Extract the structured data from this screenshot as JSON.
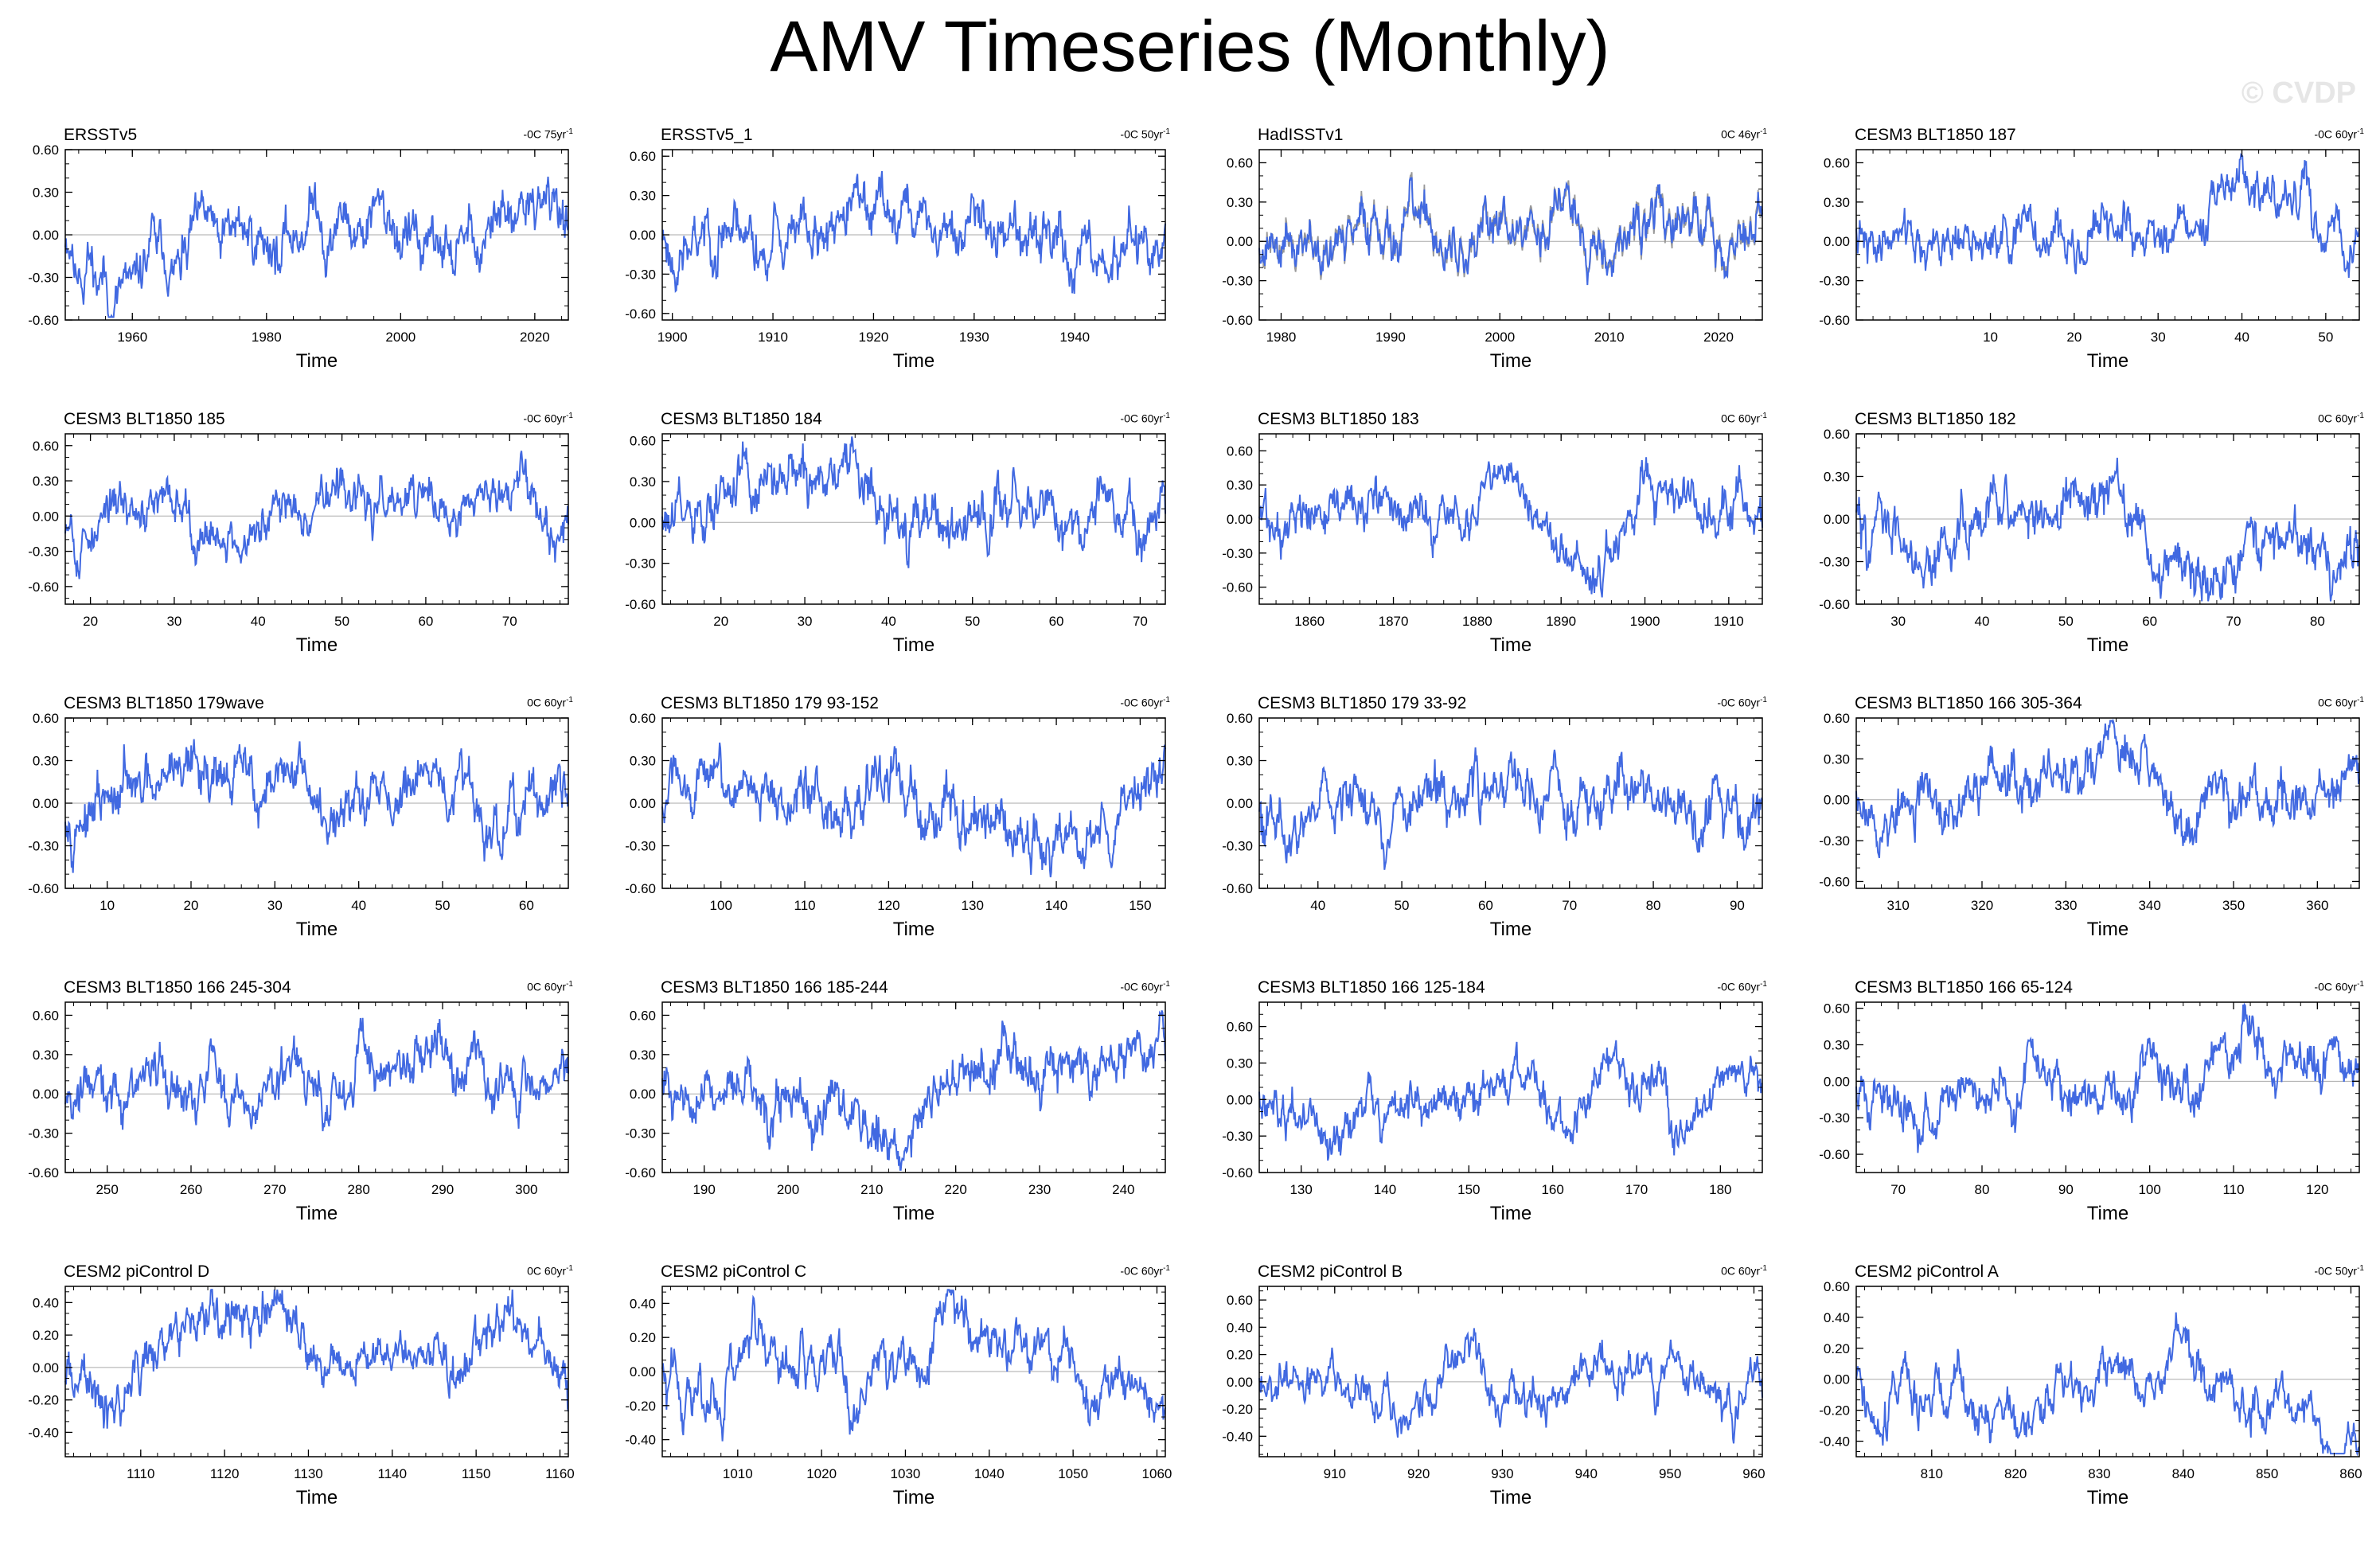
{
  "figure": {
    "title": "AMV Timeseries (Monthly)",
    "watermark": "© CVDP"
  },
  "colors": {
    "series": "#4169e1",
    "zero_line": "#aaaaaa",
    "axis": "#000000",
    "obs_secondary": "#999999"
  },
  "chart_data": [
    {
      "type": "line",
      "title": "ERSSTv5",
      "trend": "-0C 75yr",
      "xlabel": "Time",
      "ylabel": "",
      "xlim": [
        1950,
        2025
      ],
      "ylim": [
        -0.6,
        0.6
      ],
      "yticks": [
        "-0.60",
        "-0.30",
        "0.00",
        "0.30",
        "0.60"
      ],
      "xticks": [
        1960,
        1980,
        2000,
        2020
      ],
      "seed": 11,
      "noise_amp": 0.22
    },
    {
      "type": "line",
      "title": "ERSSTv5_1",
      "trend": "-0C 50yr",
      "xlabel": "Time",
      "ylabel": "",
      "xlim": [
        1899,
        1949
      ],
      "ylim": [
        -0.65,
        0.65
      ],
      "yticks": [
        "-0.60",
        "-0.30",
        "0.00",
        "0.30",
        "0.60"
      ],
      "xticks": [
        1900,
        1910,
        1920,
        1930,
        1940
      ],
      "seed": 23,
      "noise_amp": 0.24
    },
    {
      "type": "line",
      "title": "HadISSTv1",
      "trend": "0C 46yr",
      "xlabel": "Time",
      "ylabel": "",
      "xlim": [
        1978,
        2024
      ],
      "ylim": [
        -0.6,
        0.7
      ],
      "yticks": [
        "-0.60",
        "-0.30",
        "0.00",
        "0.30",
        "0.60"
      ],
      "xticks": [
        1980,
        1990,
        2000,
        2010,
        2020
      ],
      "seed": 37,
      "noise_amp": 0.22,
      "secondary": true
    },
    {
      "type": "line",
      "title": "CESM3 BLT1850 187",
      "trend": "-0C 60yr",
      "xlabel": "Time",
      "ylabel": "",
      "xlim": [
        -6,
        54
      ],
      "ylim": [
        -0.6,
        0.7
      ],
      "yticks": [
        "-0.60",
        "-0.30",
        "0.00",
        "0.30",
        "0.60"
      ],
      "xticks": [
        10,
        20,
        30,
        40,
        50
      ],
      "seed": 41,
      "noise_amp": 0.2
    },
    {
      "type": "line",
      "title": "CESM3 BLT1850 185",
      "trend": "-0C 60yr",
      "xlabel": "Time",
      "ylabel": "",
      "xlim": [
        17,
        77
      ],
      "ylim": [
        -0.75,
        0.7
      ],
      "yticks": [
        "-0.60",
        "-0.30",
        "0.00",
        "0.30",
        "0.60"
      ],
      "xticks": [
        20,
        30,
        40,
        50,
        60,
        70
      ],
      "seed": 53,
      "noise_amp": 0.22
    },
    {
      "type": "line",
      "title": "CESM3 BLT1850 184",
      "trend": "-0C 60yr",
      "xlabel": "Time",
      "ylabel": "",
      "xlim": [
        13,
        73
      ],
      "ylim": [
        -0.6,
        0.65
      ],
      "yticks": [
        "-0.60",
        "-0.30",
        "0.00",
        "0.30",
        "0.60"
      ],
      "xticks": [
        20,
        30,
        40,
        50,
        60,
        70
      ],
      "seed": 61,
      "noise_amp": 0.24
    },
    {
      "type": "line",
      "title": "CESM3 BLT1850 183",
      "trend": "0C 60yr",
      "xlabel": "Time",
      "ylabel": "",
      "xlim": [
        1854,
        1914
      ],
      "ylim": [
        -0.75,
        0.75
      ],
      "yticks": [
        "-0.60",
        "-0.30",
        "0.00",
        "0.30",
        "0.60"
      ],
      "xticks": [
        1860,
        1870,
        1880,
        1890,
        1900,
        1910
      ],
      "seed": 71,
      "noise_amp": 0.24
    },
    {
      "type": "line",
      "title": "CESM3 BLT1850 182",
      "trend": "0C 60yr",
      "xlabel": "Time",
      "ylabel": "",
      "xlim": [
        25,
        85
      ],
      "ylim": [
        -0.6,
        0.6
      ],
      "yticks": [
        "-0.60",
        "-0.30",
        "0.00",
        "0.30",
        "0.60"
      ],
      "xticks": [
        30,
        40,
        50,
        60,
        70,
        80
      ],
      "seed": 83,
      "noise_amp": 0.22
    },
    {
      "type": "line",
      "title": "CESM3 BLT1850 179wave",
      "trend": "0C 60yr",
      "xlabel": "Time",
      "ylabel": "",
      "xlim": [
        5,
        65
      ],
      "ylim": [
        -0.6,
        0.6
      ],
      "yticks": [
        "-0.60",
        "-0.30",
        "0.00",
        "0.30",
        "0.60"
      ],
      "xticks": [
        10,
        20,
        30,
        40,
        50,
        60
      ],
      "seed": 97,
      "noise_amp": 0.22
    },
    {
      "type": "line",
      "title": "CESM3 BLT1850 179 93-152",
      "trend": "-0C 60yr",
      "xlabel": "Time",
      "ylabel": "",
      "xlim": [
        93,
        153
      ],
      "ylim": [
        -0.6,
        0.6
      ],
      "yticks": [
        "-0.60",
        "-0.30",
        "0.00",
        "0.30",
        "0.60"
      ],
      "xticks": [
        100,
        110,
        120,
        130,
        140,
        150
      ],
      "seed": 103,
      "noise_amp": 0.22
    },
    {
      "type": "line",
      "title": "CESM3 BLT1850 179 33-92",
      "trend": "-0C 60yr",
      "xlabel": "Time",
      "ylabel": "",
      "xlim": [
        33,
        93
      ],
      "ylim": [
        -0.6,
        0.6
      ],
      "yticks": [
        "-0.60",
        "-0.30",
        "0.00",
        "0.30",
        "0.60"
      ],
      "xticks": [
        40,
        50,
        60,
        70,
        80,
        90
      ],
      "seed": 113,
      "noise_amp": 0.22
    },
    {
      "type": "line",
      "title": "CESM3 BLT1850 166 305-364",
      "trend": "0C 60yr",
      "xlabel": "Time",
      "ylabel": "",
      "xlim": [
        305,
        365
      ],
      "ylim": [
        -0.65,
        0.6
      ],
      "yticks": [
        "-0.60",
        "-0.30",
        "0.00",
        "0.30",
        "0.60"
      ],
      "xticks": [
        310,
        320,
        330,
        340,
        350,
        360
      ],
      "seed": 127,
      "noise_amp": 0.22
    },
    {
      "type": "line",
      "title": "CESM3 BLT1850 166 245-304",
      "trend": "0C 60yr",
      "xlabel": "Time",
      "ylabel": "",
      "xlim": [
        245,
        305
      ],
      "ylim": [
        -0.6,
        0.7
      ],
      "yticks": [
        "-0.60",
        "-0.30",
        "0.00",
        "0.30",
        "0.60"
      ],
      "xticks": [
        250,
        260,
        270,
        280,
        290,
        300
      ],
      "seed": 131,
      "noise_amp": 0.22
    },
    {
      "type": "line",
      "title": "CESM3 BLT1850 166 185-244",
      "trend": "-0C 60yr",
      "xlabel": "Time",
      "ylabel": "",
      "xlim": [
        185,
        245
      ],
      "ylim": [
        -0.6,
        0.7
      ],
      "yticks": [
        "-0.60",
        "-0.30",
        "0.00",
        "0.30",
        "0.60"
      ],
      "xticks": [
        190,
        200,
        210,
        220,
        230,
        240
      ],
      "seed": 139,
      "noise_amp": 0.24
    },
    {
      "type": "line",
      "title": "CESM3 BLT1850 166 125-184",
      "trend": "-0C 60yr",
      "xlabel": "Time",
      "ylabel": "",
      "xlim": [
        125,
        185
      ],
      "ylim": [
        -0.6,
        0.8
      ],
      "yticks": [
        "-0.60",
        "-0.30",
        "0.00",
        "0.30",
        "0.60"
      ],
      "xticks": [
        130,
        140,
        150,
        160,
        170,
        180
      ],
      "seed": 149,
      "noise_amp": 0.2
    },
    {
      "type": "line",
      "title": "CESM3 BLT1850 166 65-124",
      "trend": "-0C 60yr",
      "xlabel": "Time",
      "ylabel": "",
      "xlim": [
        65,
        125
      ],
      "ylim": [
        -0.75,
        0.65
      ],
      "yticks": [
        "-0.60",
        "-0.30",
        "0.00",
        "0.30",
        "0.60"
      ],
      "xticks": [
        70,
        80,
        90,
        100,
        110,
        120
      ],
      "seed": 157,
      "noise_amp": 0.22
    },
    {
      "type": "line",
      "title": "CESM2 piControl D",
      "trend": "0C 60yr",
      "xlabel": "Time",
      "ylabel": "",
      "xlim": [
        1101,
        1161
      ],
      "ylim": [
        -0.55,
        0.5
      ],
      "yticks": [
        "-0.40",
        "-0.20",
        "0.00",
        "0.20",
        "0.40"
      ],
      "xticks": [
        1110,
        1120,
        1130,
        1140,
        1150,
        1160
      ],
      "seed": 163,
      "noise_amp": 0.16
    },
    {
      "type": "line",
      "title": "CESM2 piControl C",
      "trend": "-0C 60yr",
      "xlabel": "Time",
      "ylabel": "",
      "xlim": [
        1001,
        1061
      ],
      "ylim": [
        -0.5,
        0.5
      ],
      "yticks": [
        "-0.40",
        "-0.20",
        "0.00",
        "0.20",
        "0.40"
      ],
      "xticks": [
        1010,
        1020,
        1030,
        1040,
        1050,
        1060
      ],
      "seed": 173,
      "noise_amp": 0.16
    },
    {
      "type": "line",
      "title": "CESM2 piControl B",
      "trend": "0C 60yr",
      "xlabel": "Time",
      "ylabel": "",
      "xlim": [
        901,
        961
      ],
      "ylim": [
        -0.55,
        0.7
      ],
      "yticks": [
        "-0.40",
        "-0.20",
        "0.00",
        "0.20",
        "0.40",
        "0.60"
      ],
      "xticks": [
        910,
        920,
        930,
        940,
        950,
        960
      ],
      "seed": 181,
      "noise_amp": 0.16
    },
    {
      "type": "line",
      "title": "CESM2 piControl A",
      "trend": "-0C 50yr",
      "xlabel": "Time",
      "ylabel": "",
      "xlim": [
        801,
        861
      ],
      "ylim": [
        -0.5,
        0.6
      ],
      "yticks": [
        "-0.40",
        "-0.20",
        "0.00",
        "0.20",
        "0.40",
        "0.60"
      ],
      "xticks": [
        810,
        820,
        830,
        840,
        850,
        860
      ],
      "seed": 191,
      "noise_amp": 0.16
    }
  ]
}
